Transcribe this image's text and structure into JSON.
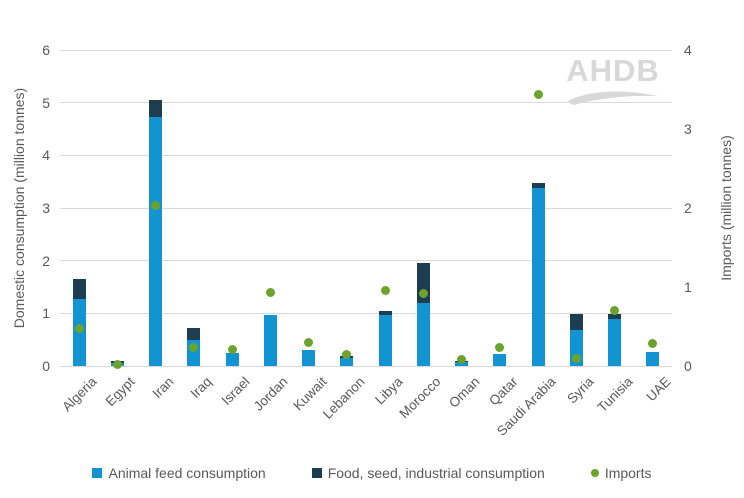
{
  "watermark": {
    "text": "AHDB"
  },
  "chart_data": {
    "type": "bar",
    "subtype": "stacked-bars-with-scatter-overlay",
    "title": "",
    "categories": [
      "Algeria",
      "Egypt",
      "Iran",
      "Iraq",
      "Israel",
      "Jordan",
      "Kuwait",
      "Lebanon",
      "Libya",
      "Morocco",
      "Oman",
      "Qatar",
      "Saudi Arabia",
      "Syria",
      "Tunisia",
      "UAE"
    ],
    "series": [
      {
        "name": "Animal feed consumption",
        "type": "bar",
        "axis": "left",
        "color": "#1294d2",
        "values": [
          1.27,
          0.05,
          4.72,
          0.5,
          0.24,
          0.96,
          0.3,
          0.16,
          0.96,
          1.19,
          0.07,
          0.23,
          3.38,
          0.68,
          0.9,
          0.27
        ]
      },
      {
        "name": "Food, seed, industrial consumption",
        "type": "bar",
        "axis": "left",
        "color": "#1d3e50",
        "values": [
          0.39,
          0.04,
          0.33,
          0.23,
          0.0,
          0.0,
          0.0,
          0.03,
          0.08,
          0.76,
          0.03,
          0.0,
          0.1,
          0.3,
          0.09,
          0.0
        ]
      },
      {
        "name": "Imports",
        "type": "scatter",
        "axis": "right",
        "color": "#6ba32d",
        "values": [
          0.48,
          0.02,
          2.03,
          0.23,
          0.21,
          0.93,
          0.3,
          0.15,
          0.96,
          0.92,
          0.08,
          0.23,
          3.44,
          0.1,
          0.7,
          0.29
        ]
      }
    ],
    "left_axis": {
      "label": "Domestic consumption (million tonnes)",
      "min": 0,
      "max": 6,
      "ticks": [
        0,
        1,
        2,
        3,
        4,
        5,
        6
      ]
    },
    "right_axis": {
      "label": "Imports (million tonnes)",
      "min": 0,
      "max": 4,
      "ticks": [
        0,
        1,
        2,
        3,
        4
      ]
    },
    "grid": true,
    "gridline_color": "#d9d9d9",
    "text_color": "#595959",
    "legend_position": "bottom",
    "x_tick_rotation_deg": 45
  }
}
